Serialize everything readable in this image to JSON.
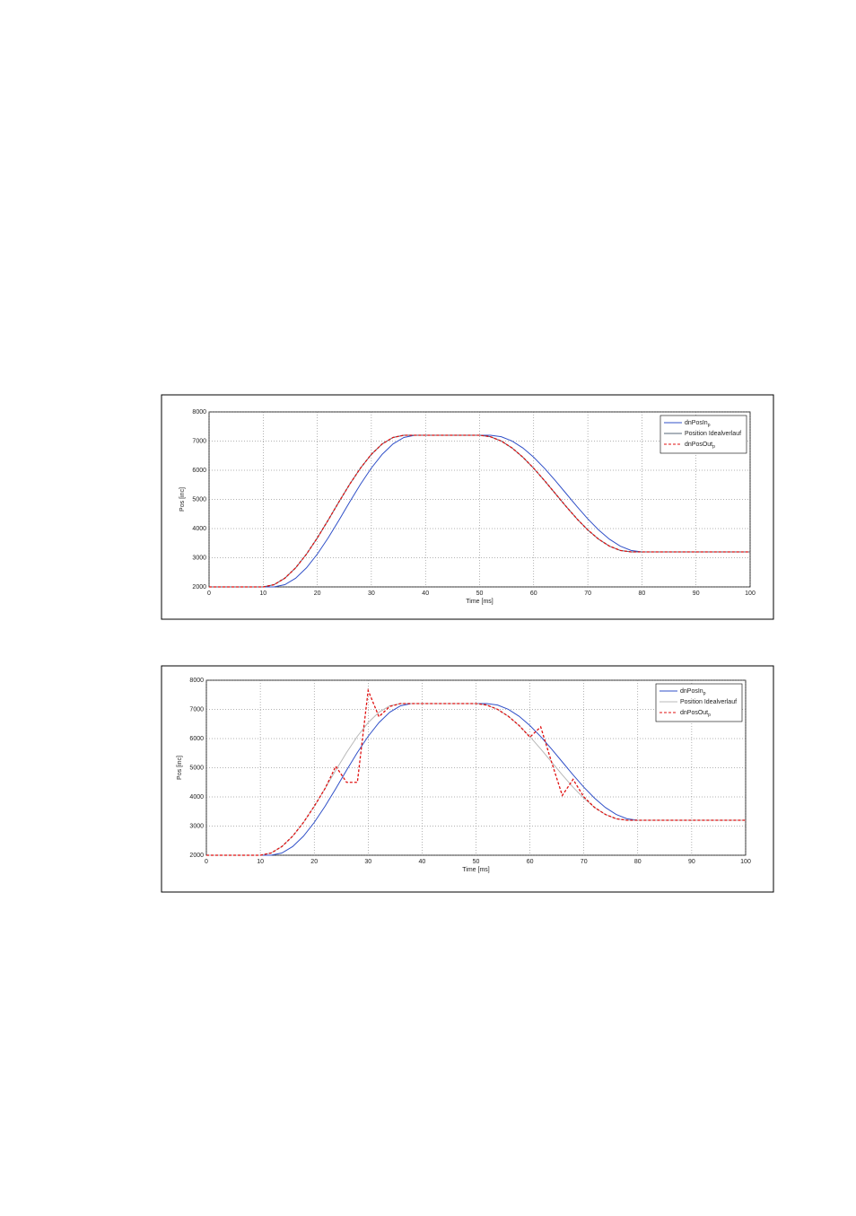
{
  "chart_data": [
    {
      "type": "line",
      "xlabel": "Time [ms]",
      "ylabel": "Pos [inc]",
      "xlim": [
        0,
        100
      ],
      "ylim": [
        2000,
        8000
      ],
      "xticks": [
        0,
        10,
        20,
        30,
        40,
        50,
        60,
        70,
        80,
        90,
        100
      ],
      "yticks": [
        2000,
        3000,
        4000,
        5000,
        6000,
        7000,
        8000
      ],
      "grid": true,
      "legend": "upper right",
      "x": [
        0,
        2,
        4,
        6,
        8,
        10,
        12,
        14,
        16,
        18,
        20,
        22,
        24,
        26,
        28,
        30,
        32,
        34,
        36,
        38,
        40,
        42,
        44,
        46,
        48,
        50,
        52,
        54,
        56,
        58,
        60,
        62,
        64,
        66,
        68,
        70,
        72,
        74,
        76,
        78,
        80,
        82,
        84,
        86,
        88,
        90,
        92,
        94,
        96,
        98,
        100
      ],
      "series": [
        {
          "name": "dnPosIn",
          "subscript": "p",
          "color": "#3050c8",
          "linestyle": "solid",
          "values": [
            2000,
            2000,
            2000,
            2000,
            2000,
            2000,
            2000,
            2076,
            2298,
            2654,
            3123,
            3678,
            4286,
            4914,
            5522,
            6077,
            6546,
            6902,
            7124,
            7200,
            7200,
            7200,
            7200,
            7200,
            7200,
            7200,
            7200,
            7150,
            7002,
            6764,
            6447,
            6068,
            5645,
            5200,
            4755,
            4332,
            3953,
            3636,
            3398,
            3250,
            3200,
            3200,
            3200,
            3200,
            3200,
            3200,
            3200,
            3200,
            3200,
            3200,
            3200
          ]
        },
        {
          "name": "Position Idealverlauf",
          "color": "#556677",
          "linestyle": "solid",
          "values": [
            2000,
            2000,
            2000,
            2000,
            2000,
            2000,
            2076,
            2298,
            2654,
            3123,
            3678,
            4286,
            4914,
            5522,
            6077,
            6546,
            6902,
            7124,
            7200,
            7200,
            7200,
            7200,
            7200,
            7200,
            7200,
            7200,
            7150,
            7002,
            6764,
            6447,
            6068,
            5645,
            5200,
            4755,
            4332,
            3953,
            3636,
            3398,
            3250,
            3200,
            3200,
            3200,
            3200,
            3200,
            3200,
            3200,
            3200,
            3200,
            3200,
            3200,
            3200
          ]
        },
        {
          "name": "dnPosOut",
          "subscript": "p",
          "color": "#e01010",
          "linestyle": "dashed",
          "values": [
            2000,
            2000,
            2000,
            2000,
            2000,
            2000,
            2076,
            2298,
            2654,
            3123,
            3678,
            4286,
            4914,
            5522,
            6077,
            6546,
            6902,
            7124,
            7200,
            7200,
            7200,
            7200,
            7200,
            7200,
            7200,
            7200,
            7150,
            7002,
            6764,
            6447,
            6068,
            5645,
            5200,
            4755,
            4332,
            3953,
            3636,
            3398,
            3250,
            3200,
            3200,
            3200,
            3200,
            3200,
            3200,
            3200,
            3200,
            3200,
            3200,
            3200,
            3200
          ]
        }
      ]
    },
    {
      "type": "line",
      "xlabel": "Time [ms]",
      "ylabel": "Pos [inc]",
      "xlim": [
        0,
        100
      ],
      "ylim": [
        2000,
        8000
      ],
      "xticks": [
        0,
        10,
        20,
        30,
        40,
        50,
        60,
        70,
        80,
        90,
        100
      ],
      "yticks": [
        2000,
        3000,
        4000,
        5000,
        6000,
        7000,
        8000
      ],
      "grid": true,
      "legend": "upper right",
      "x": [
        0,
        2,
        4,
        6,
        8,
        10,
        12,
        14,
        16,
        18,
        20,
        22,
        24,
        26,
        28,
        30,
        32,
        34,
        36,
        38,
        40,
        42,
        44,
        46,
        48,
        50,
        52,
        54,
        56,
        58,
        60,
        62,
        64,
        66,
        68,
        70,
        72,
        74,
        76,
        78,
        80,
        82,
        84,
        86,
        88,
        90,
        92,
        94,
        96,
        98,
        100
      ],
      "series": [
        {
          "name": "dnPosIn",
          "subscript": "p",
          "color": "#3050c8",
          "linestyle": "solid",
          "values": [
            2000,
            2000,
            2000,
            2000,
            2000,
            2000,
            2000,
            2076,
            2298,
            2654,
            3123,
            3678,
            4286,
            4914,
            5522,
            6077,
            6546,
            6902,
            7124,
            7200,
            7200,
            7200,
            7200,
            7200,
            7200,
            7200,
            7200,
            7150,
            7002,
            6764,
            6447,
            6068,
            5645,
            5200,
            4755,
            4332,
            3953,
            3636,
            3398,
            3250,
            3200,
            3200,
            3200,
            3200,
            3200,
            3200,
            3200,
            3200,
            3200,
            3200,
            3200
          ]
        },
        {
          "name": "Position Idealverlauf",
          "color": "#b8b8b8",
          "linestyle": "solid",
          "values": [
            2000,
            2000,
            2000,
            2000,
            2000,
            2000,
            2076,
            2298,
            2654,
            3123,
            3678,
            4286,
            4914,
            5522,
            6077,
            6546,
            6902,
            7124,
            7200,
            7200,
            7200,
            7200,
            7200,
            7200,
            7200,
            7200,
            7150,
            7002,
            6764,
            6447,
            6068,
            5645,
            5200,
            4755,
            4332,
            3953,
            3636,
            3398,
            3250,
            3200,
            3200,
            3200,
            3200,
            3200,
            3200,
            3200,
            3200,
            3200,
            3200,
            3200,
            3200
          ]
        },
        {
          "name": "dnPosOut",
          "subscript": "p",
          "color": "#e01010",
          "linestyle": "dashed",
          "values": [
            2000,
            2000,
            2000,
            2000,
            2000,
            2000,
            2076,
            2298,
            2654,
            3123,
            3678,
            4286,
            5050,
            4500,
            4500,
            7650,
            6750,
            7100,
            7200,
            7200,
            7200,
            7200,
            7200,
            7200,
            7200,
            7200,
            7150,
            7002,
            6764,
            6447,
            6050,
            6400,
            5200,
            4050,
            4600,
            4000,
            3636,
            3398,
            3250,
            3200,
            3200,
            3200,
            3200,
            3200,
            3200,
            3200,
            3200,
            3200,
            3200,
            3200,
            3200
          ]
        }
      ]
    }
  ]
}
